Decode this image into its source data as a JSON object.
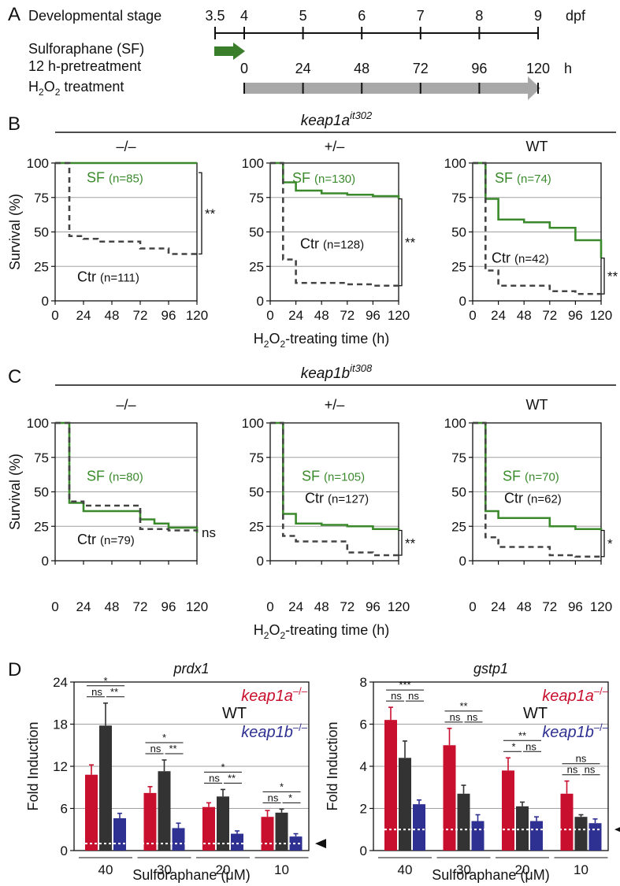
{
  "panels": {
    "A": "A",
    "B": "B",
    "C": "C",
    "D": "D"
  },
  "timeline": {
    "stage_label": "Developmental stage",
    "stage_ticks": [
      "3.5",
      "4",
      "5",
      "6",
      "7",
      "8",
      "9"
    ],
    "stage_unit": "dpf",
    "sf_line1": "Sulforaphane (SF)",
    "sf_line2": "12 h-pretreatment",
    "h2o2_main": "H",
    "h2o2_sub": "2",
    "h2o2_mid": "O",
    "h2o2_sub2": "2",
    "h2o2_rest": " treatment",
    "h_ticks": [
      "0",
      "24",
      "48",
      "72",
      "96",
      "120"
    ],
    "h_unit": "h",
    "arrow_colors": {
      "sf": "#3a7d2a",
      "h2o2": "#a8a8a8"
    }
  },
  "survival_common": {
    "ylabel": "Survival (%)",
    "xlabel_pre": "H",
    "xlabel_sub": "2",
    "xlabel_mid": "O",
    "xlabel_sub2": "2",
    "xlabel_post": "-treating time (h)",
    "yticks": [
      "0",
      "25",
      "50",
      "75",
      "100"
    ],
    "xticks": [
      "0",
      "24",
      "48",
      "72",
      "96",
      "120"
    ]
  },
  "groups": {
    "B": {
      "gene": "keap1a",
      "allele": "it302",
      "color": "#c8102e"
    },
    "C": {
      "gene": "keap1b",
      "allele": "it308",
      "color": "#2e3192"
    }
  },
  "colors": {
    "sf": "#3a8a2c",
    "ctr": "#444444",
    "grid": "#a0a0a0",
    "red": "#c8102e",
    "black": "#333333",
    "blue": "#2e3192"
  },
  "chart_data": [
    {
      "type": "line",
      "group": "B",
      "genotype": "–/–",
      "xlim": [
        0,
        120
      ],
      "ylim": [
        0,
        100
      ],
      "sf_label": "SF",
      "sf_n": "(n=85)",
      "ctr_label": "Ctr",
      "ctr_n": "(n=111)",
      "significance": "**",
      "series": [
        {
          "name": "SF",
          "x": [
            0,
            120
          ],
          "y": [
            100,
            100
          ]
        },
        {
          "name": "Ctr",
          "x": [
            0,
            12,
            24,
            36,
            72,
            96,
            120
          ],
          "y": [
            100,
            47,
            45,
            43,
            38,
            34,
            34
          ]
        }
      ]
    },
    {
      "type": "line",
      "group": "B",
      "genotype": "+/–",
      "xlim": [
        0,
        120
      ],
      "ylim": [
        0,
        100
      ],
      "sf_label": "SF",
      "sf_n": "(n=130)",
      "ctr_label": "Ctr",
      "ctr_n": "(n=128)",
      "significance": "**",
      "series": [
        {
          "name": "SF",
          "x": [
            0,
            12,
            24,
            48,
            72,
            96,
            120
          ],
          "y": [
            100,
            86,
            80,
            78,
            77,
            76,
            74
          ]
        },
        {
          "name": "Ctr",
          "x": [
            0,
            12,
            24,
            72,
            96,
            120
          ],
          "y": [
            100,
            30,
            13,
            12,
            11,
            11
          ]
        }
      ]
    },
    {
      "type": "line",
      "group": "B",
      "genotype": "WT",
      "xlim": [
        0,
        120
      ],
      "ylim": [
        0,
        100
      ],
      "sf_label": "SF",
      "sf_n": "(n=74)",
      "ctr_label": "Ctr",
      "ctr_n": "(n=42)",
      "significance": "**",
      "series": [
        {
          "name": "SF",
          "x": [
            0,
            12,
            24,
            48,
            72,
            96,
            120
          ],
          "y": [
            100,
            74,
            59,
            57,
            53,
            44,
            31
          ]
        },
        {
          "name": "Ctr",
          "x": [
            0,
            12,
            24,
            72,
            96,
            120
          ],
          "y": [
            100,
            22,
            11,
            7,
            5,
            5
          ]
        }
      ]
    },
    {
      "type": "line",
      "group": "C",
      "genotype": "–/–",
      "xlim": [
        0,
        120
      ],
      "ylim": [
        0,
        100
      ],
      "sf_label": "SF",
      "sf_n": "(n=80)",
      "ctr_label": "Ctr",
      "ctr_n": "(n=79)",
      "significance": "ns",
      "series": [
        {
          "name": "SF",
          "x": [
            0,
            12,
            24,
            72,
            84,
            96,
            120
          ],
          "y": [
            100,
            42,
            36,
            30,
            27,
            24,
            20
          ]
        },
        {
          "name": "Ctr",
          "x": [
            0,
            12,
            24,
            72,
            96,
            120
          ],
          "y": [
            100,
            43,
            40,
            23,
            22,
            21
          ]
        }
      ]
    },
    {
      "type": "line",
      "group": "C",
      "genotype": "+/–",
      "xlim": [
        0,
        120
      ],
      "ylim": [
        0,
        100
      ],
      "sf_label": "SF",
      "sf_n": "(n=105)",
      "ctr_label": "Ctr",
      "ctr_n": "(n=127)",
      "significance": "**",
      "series": [
        {
          "name": "SF",
          "x": [
            0,
            12,
            24,
            48,
            72,
            96,
            120
          ],
          "y": [
            100,
            34,
            27,
            26,
            25,
            23,
            22
          ]
        },
        {
          "name": "Ctr",
          "x": [
            0,
            12,
            24,
            72,
            96,
            120
          ],
          "y": [
            100,
            18,
            14,
            6,
            4,
            4
          ]
        }
      ]
    },
    {
      "type": "line",
      "group": "C",
      "genotype": "WT",
      "xlim": [
        0,
        120
      ],
      "ylim": [
        0,
        100
      ],
      "sf_label": "SF",
      "sf_n": "(n=70)",
      "ctr_label": "Ctr",
      "ctr_n": "(n=62)",
      "significance": "*",
      "series": [
        {
          "name": "SF",
          "x": [
            0,
            12,
            24,
            72,
            96,
            120
          ],
          "y": [
            100,
            36,
            31,
            25,
            23,
            22
          ]
        },
        {
          "name": "Ctr",
          "x": [
            0,
            12,
            24,
            72,
            96,
            120
          ],
          "y": [
            100,
            17,
            10,
            4,
            3,
            3
          ]
        }
      ]
    },
    {
      "type": "bar",
      "title": "prdx1",
      "ylabel": "Fold Induction",
      "xlabel": "Sulforaphane (μM)",
      "ylim": [
        0,
        24
      ],
      "yticks": [
        "0",
        "6",
        "12",
        "18",
        "24"
      ],
      "categories": [
        "40",
        "30",
        "20",
        "10"
      ],
      "baseline": 1,
      "series": [
        {
          "name": "keap1a–/–",
          "values": [
            10.8,
            8.2,
            6.2,
            4.8
          ],
          "errors": [
            1.4,
            0.9,
            0.6,
            0.9
          ]
        },
        {
          "name": "WT",
          "values": [
            17.8,
            11.3,
            7.7,
            5.4
          ],
          "errors": [
            3.2,
            1.6,
            1.0,
            0.5
          ]
        },
        {
          "name": "keap1b–/–",
          "values": [
            4.6,
            3.2,
            2.4,
            2.0
          ],
          "errors": [
            0.7,
            0.7,
            0.4,
            0.4
          ]
        }
      ],
      "sig": [
        [
          "*",
          "ns",
          "**"
        ],
        [
          "*",
          "ns",
          "**"
        ],
        [
          "*",
          "ns",
          "**"
        ],
        [
          "*",
          "ns",
          "*"
        ]
      ]
    },
    {
      "type": "bar",
      "title": "gstp1",
      "ylabel": "Fold Induction",
      "xlabel": "Sulforaphane (μM)",
      "ylim": [
        0,
        8
      ],
      "yticks": [
        "0",
        "2",
        "4",
        "6",
        "8"
      ],
      "categories": [
        "40",
        "30",
        "20",
        "10"
      ],
      "baseline": 1,
      "series": [
        {
          "name": "keap1a–/–",
          "values": [
            6.2,
            5.0,
            3.8,
            2.7
          ],
          "errors": [
            0.6,
            0.8,
            0.6,
            0.6
          ]
        },
        {
          "name": "WT",
          "values": [
            4.4,
            2.7,
            2.1,
            1.6
          ],
          "errors": [
            0.8,
            0.4,
            0.2,
            0.1
          ]
        },
        {
          "name": "keap1b–/–",
          "values": [
            2.2,
            1.4,
            1.4,
            1.3
          ],
          "errors": [
            0.2,
            0.3,
            0.2,
            0.2
          ]
        }
      ],
      "sig": [
        [
          "***",
          "ns",
          "ns"
        ],
        [
          "**",
          "ns",
          "ns"
        ],
        [
          "**",
          "*",
          "ns"
        ],
        [
          "ns",
          "ns",
          "ns"
        ]
      ]
    }
  ],
  "legend_D": {
    "a_gene": "keap1a",
    "a_sup": "–/–",
    "wt": "WT",
    "b_gene": "keap1b",
    "b_sup": "–/–"
  }
}
